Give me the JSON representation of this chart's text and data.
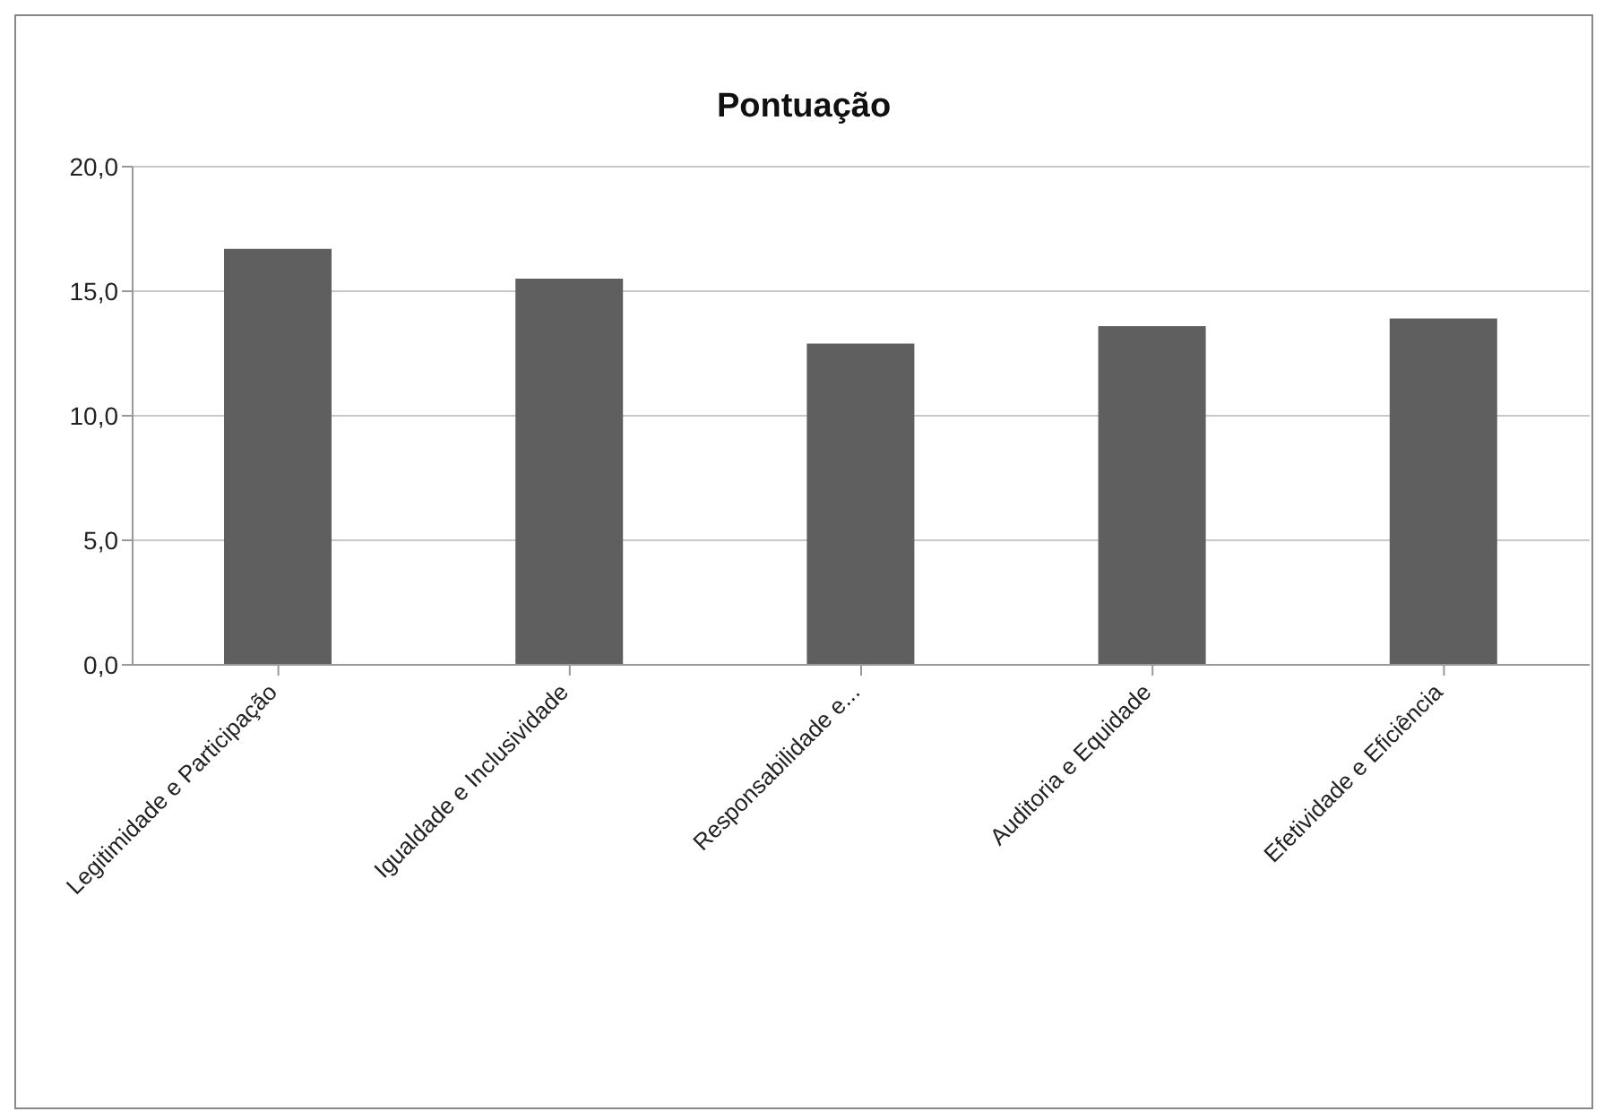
{
  "chart_data": {
    "type": "bar",
    "title": "Pontuação",
    "categories": [
      "Legitimidade e Participação",
      "Igualdade e Inclusividade",
      "Responsabilidade e...",
      "Auditoria e Equidade",
      "Efetividade e Eficiência"
    ],
    "values": [
      16.7,
      15.5,
      12.9,
      13.6,
      13.9
    ],
    "color": "#5f5f5f",
    "ylim": [
      0,
      20
    ],
    "yticks": [
      {
        "value": 0,
        "label": "0,0"
      },
      {
        "value": 5,
        "label": "5,0"
      },
      {
        "value": 10,
        "label": "10,0"
      },
      {
        "value": 15,
        "label": "15,0"
      },
      {
        "value": 20,
        "label": "20,0"
      }
    ],
    "grid": "y",
    "legend": false
  }
}
